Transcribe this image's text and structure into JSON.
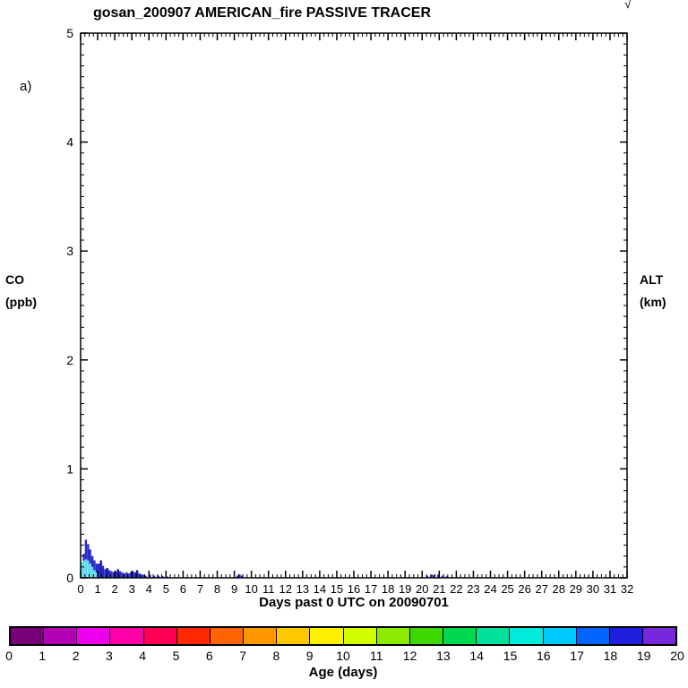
{
  "figure": {
    "panel_label": "a)",
    "corner_mark": "√"
  },
  "chart_data": {
    "type": "bar",
    "title": "gosan_200907 AMERICAN_fire PASSIVE TRACER",
    "xlabel": "Days past 0 UTC on 20090701",
    "ylabel_left": [
      "CO",
      "(ppb)"
    ],
    "ylabel_right": [
      "ALT",
      "(km)"
    ],
    "xlim": [
      0,
      32
    ],
    "ylim": [
      0,
      5
    ],
    "x_ticks": [
      0,
      1,
      2,
      3,
      4,
      5,
      6,
      7,
      8,
      9,
      10,
      11,
      12,
      13,
      14,
      15,
      16,
      17,
      18,
      19,
      20,
      21,
      22,
      23,
      24,
      25,
      26,
      27,
      28,
      29,
      30,
      31,
      32
    ],
    "y_ticks": [
      0,
      1,
      2,
      3,
      4,
      5
    ],
    "x_minor_step": 0.25,
    "y_minor_step": 0.1,
    "grid": false,
    "bar_width_days": 0.125,
    "bar_colors": {
      "c": "#63DCEE",
      "b": "#2A2ACC",
      "d": "#14149E",
      "v": "#6E2CD8"
    },
    "bars": [
      {
        "x": 0.06,
        "s": [
          [
            "c",
            0.14
          ]
        ]
      },
      {
        "x": 0.19,
        "s": [
          [
            "c",
            0.16
          ],
          [
            "b",
            0.06
          ]
        ]
      },
      {
        "x": 0.31,
        "s": [
          [
            "c",
            0.17
          ],
          [
            "b",
            0.18
          ]
        ]
      },
      {
        "x": 0.44,
        "s": [
          [
            "c",
            0.16
          ],
          [
            "b",
            0.15
          ]
        ]
      },
      {
        "x": 0.56,
        "s": [
          [
            "c",
            0.13
          ],
          [
            "b",
            0.13
          ]
        ]
      },
      {
        "x": 0.69,
        "s": [
          [
            "c",
            0.1
          ],
          [
            "b",
            0.1
          ]
        ]
      },
      {
        "x": 0.81,
        "s": [
          [
            "c",
            0.07
          ],
          [
            "b",
            0.09
          ]
        ]
      },
      {
        "x": 0.94,
        "s": [
          [
            "c",
            0.05
          ],
          [
            "b",
            0.08
          ]
        ]
      },
      {
        "x": 1.06,
        "s": [
          [
            "b",
            0.13
          ]
        ]
      },
      {
        "x": 1.19,
        "s": [
          [
            "d",
            0.16
          ]
        ]
      },
      {
        "x": 1.31,
        "s": [
          [
            "b",
            0.11
          ]
        ]
      },
      {
        "x": 1.44,
        "s": [
          [
            "b",
            0.08
          ]
        ]
      },
      {
        "x": 1.56,
        "s": [
          [
            "d",
            0.09
          ]
        ]
      },
      {
        "x": 1.69,
        "s": [
          [
            "b",
            0.07
          ]
        ]
      },
      {
        "x": 1.81,
        "s": [
          [
            "b",
            0.06
          ]
        ]
      },
      {
        "x": 1.94,
        "s": [
          [
            "b",
            0.05
          ]
        ]
      },
      {
        "x": 2.06,
        "s": [
          [
            "b",
            0.06
          ]
        ]
      },
      {
        "x": 2.19,
        "s": [
          [
            "d",
            0.08
          ]
        ]
      },
      {
        "x": 2.31,
        "s": [
          [
            "b",
            0.06
          ]
        ]
      },
      {
        "x": 2.44,
        "s": [
          [
            "b",
            0.05
          ]
        ]
      },
      {
        "x": 2.56,
        "s": [
          [
            "b",
            0.04
          ]
        ]
      },
      {
        "x": 2.69,
        "s": [
          [
            "b",
            0.05
          ]
        ]
      },
      {
        "x": 2.81,
        "s": [
          [
            "b",
            0.04
          ]
        ]
      },
      {
        "x": 2.94,
        "s": [
          [
            "b",
            0.05
          ]
        ]
      },
      {
        "x": 3.06,
        "s": [
          [
            "b",
            0.06
          ]
        ]
      },
      {
        "x": 3.19,
        "s": [
          [
            "b",
            0.05
          ]
        ]
      },
      {
        "x": 3.31,
        "s": [
          [
            "d",
            0.07
          ]
        ]
      },
      {
        "x": 3.44,
        "s": [
          [
            "b",
            0.04
          ]
        ]
      },
      {
        "x": 3.56,
        "s": [
          [
            "b",
            0.03
          ]
        ]
      },
      {
        "x": 3.69,
        "s": [
          [
            "b",
            0.03
          ]
        ]
      },
      {
        "x": 3.81,
        "s": [
          [
            "b",
            0.02
          ]
        ]
      },
      {
        "x": 4.06,
        "s": [
          [
            "b",
            0.03
          ]
        ]
      },
      {
        "x": 4.31,
        "s": [
          [
            "b",
            0.02
          ]
        ]
      },
      {
        "x": 4.56,
        "s": [
          [
            "b",
            0.02
          ]
        ]
      },
      {
        "x": 4.81,
        "s": [
          [
            "b",
            0.015
          ]
        ]
      },
      {
        "x": 5.06,
        "s": [
          [
            "b",
            0.012
          ]
        ]
      },
      {
        "x": 9.19,
        "s": [
          [
            "b",
            0.02
          ]
        ]
      },
      {
        "x": 9.31,
        "s": [
          [
            "b",
            0.03
          ]
        ]
      },
      {
        "x": 9.44,
        "s": [
          [
            "b",
            0.02
          ]
        ]
      },
      {
        "x": 20.31,
        "s": [
          [
            "v",
            0.02
          ]
        ]
      },
      {
        "x": 20.56,
        "s": [
          [
            "v",
            0.03
          ]
        ]
      },
      {
        "x": 20.69,
        "s": [
          [
            "b",
            0.025
          ]
        ]
      },
      {
        "x": 20.94,
        "s": [
          [
            "b",
            0.03
          ]
        ]
      },
      {
        "x": 21.19,
        "s": [
          [
            "v",
            0.02
          ]
        ]
      },
      {
        "x": 21.44,
        "s": [
          [
            "v",
            0.015
          ]
        ]
      }
    ],
    "colorbar": {
      "label": "Age (days)",
      "min": 0,
      "max": 20,
      "ticks": [
        0,
        1,
        2,
        3,
        4,
        5,
        6,
        7,
        8,
        9,
        10,
        11,
        12,
        13,
        14,
        15,
        16,
        17,
        18,
        19,
        20
      ],
      "colors": [
        "#780078",
        "#B400B4",
        "#EE00EE",
        "#FF00AA",
        "#FF0055",
        "#FF2800",
        "#FF6400",
        "#FF9600",
        "#FFC800",
        "#FFF000",
        "#D2FF00",
        "#8CEB00",
        "#3CD800",
        "#00D850",
        "#00E19B",
        "#00EBDC",
        "#00C8FF",
        "#0064FF",
        "#1E1EDC",
        "#7828DC"
      ]
    }
  }
}
